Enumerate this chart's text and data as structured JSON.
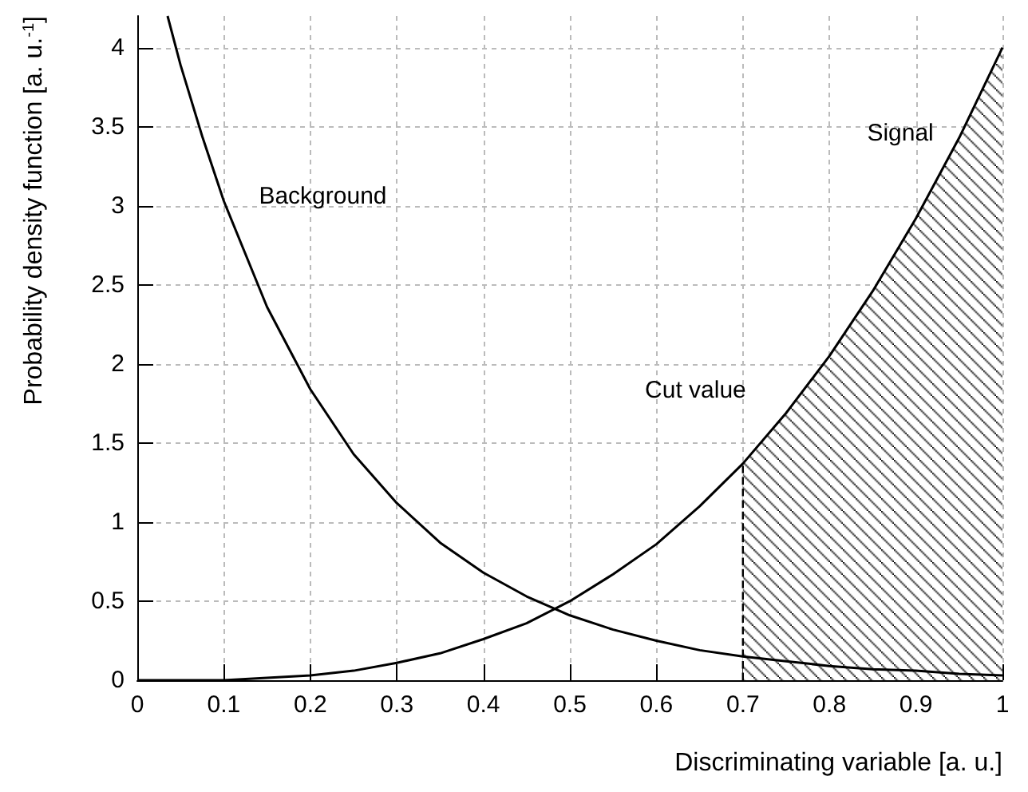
{
  "chart_data": {
    "type": "line",
    "xlabel": "Discriminating variable [a. u.]",
    "ylabel": "Probability density function [a. u.$^{-1}$]",
    "xlim": [
      0,
      1
    ],
    "xticks": [
      0,
      0.1,
      0.2,
      0.3,
      0.4,
      0.5,
      0.6,
      0.7,
      0.8,
      0.9,
      1
    ],
    "ylim": [
      0,
      4.2
    ],
    "yticks": [
      0,
      0.5,
      1,
      1.5,
      2,
      2.5,
      3,
      3.5,
      4
    ],
    "grid": true,
    "marker": "none",
    "line_style": "solid",
    "series": [
      {
        "name": "Background",
        "color": "#000000",
        "x": [
          0.035,
          0.05,
          0.075,
          0.1,
          0.15,
          0.2,
          0.25,
          0.3,
          0.35,
          0.4,
          0.45,
          0.5,
          0.55,
          0.6,
          0.65,
          0.7,
          0.75,
          0.8,
          0.85,
          0.9,
          0.95,
          1
        ],
        "values": [
          4.2,
          3.89,
          3.44,
          3.03,
          2.36,
          1.84,
          1.43,
          1.12,
          0.87,
          0.68,
          0.53,
          0.41,
          0.32,
          0.25,
          0.19,
          0.15,
          0.12,
          0.09,
          0.07,
          0.06,
          0.04,
          0.03
        ]
      },
      {
        "name": "Signal",
        "color": "#000000",
        "x": [
          0,
          0.1,
          0.2,
          0.25,
          0.3,
          0.35,
          0.4,
          0.45,
          0.5,
          0.55,
          0.6,
          0.65,
          0.7,
          0.75,
          0.8,
          0.85,
          0.9,
          0.95,
          1
        ],
        "values": [
          0,
          0,
          0.03,
          0.06,
          0.11,
          0.17,
          0.26,
          0.36,
          0.5,
          0.67,
          0.86,
          1.1,
          1.37,
          1.69,
          2.05,
          2.46,
          2.92,
          3.43,
          4.0
        ]
      },
      {
        "type": "area",
        "color": "#000000",
        "x": [
          0.7,
          0.75,
          0.8,
          0.85,
          0.9,
          0.95,
          1
        ],
        "values": [
          1.37,
          1.69,
          2.05,
          2.46,
          2.92,
          3.43,
          4.0
        ]
      }
    ],
    "ref_lines": [
      {
        "axis": "x",
        "value": 0.7,
        "line_style": "dashed",
        "color": "#000000",
        "label": "Cut value"
      }
    ]
  }
}
